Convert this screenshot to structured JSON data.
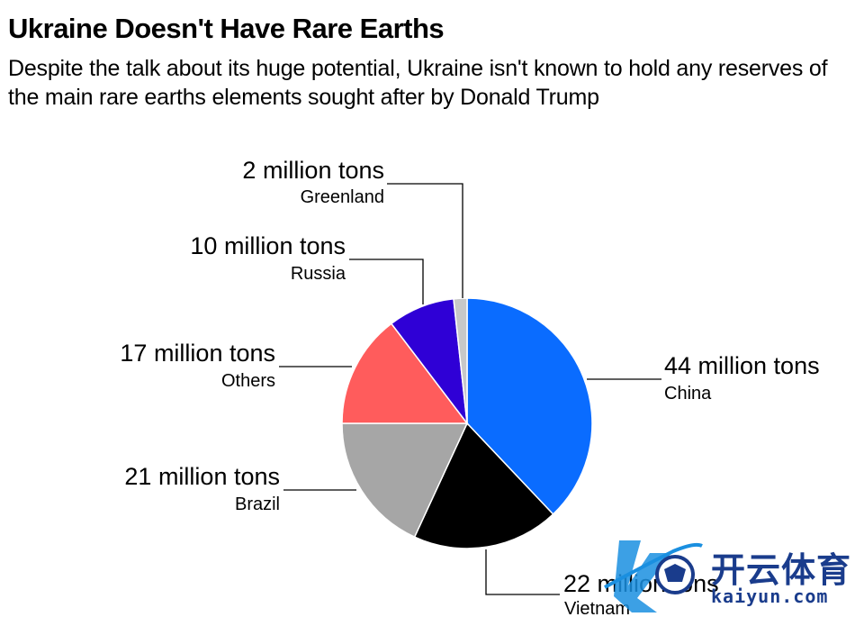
{
  "header": {
    "title": "Ukraine Doesn't Have Rare Earths",
    "subtitle": "Despite the talk about its huge potential, Ukraine isn't known to hold any reserves of the main rare earths elements sought after by Donald Trump"
  },
  "chart_data": {
    "type": "pie",
    "title": "Ukraine Doesn't Have Rare Earths",
    "subtitle": "Despite the talk about its huge potential, Ukraine isn't known to hold any reserves of the main rare earths elements sought after by Donald Trump",
    "unit": "million tons",
    "slices": [
      {
        "name": "China",
        "value": 44,
        "label": "44 million tons",
        "color": "#0a6cff"
      },
      {
        "name": "Vietnam",
        "value": 22,
        "label": "22 million tons",
        "color": "#000000"
      },
      {
        "name": "Brazil",
        "value": 21,
        "label": "21 million tons",
        "color": "#a6a6a6"
      },
      {
        "name": "Others",
        "value": 17,
        "label": "17 million tons",
        "color": "#ff5c5c"
      },
      {
        "name": "Russia",
        "value": 10,
        "label": "10 million tons",
        "color": "#2f00d6"
      },
      {
        "name": "Greenland",
        "value": 2,
        "label": "2 million tons",
        "color": "#c8c8c8"
      }
    ]
  },
  "watermark": {
    "text_cn": "开云体育",
    "text_url": "kaiyun.com",
    "color": "#1a3c8c"
  }
}
